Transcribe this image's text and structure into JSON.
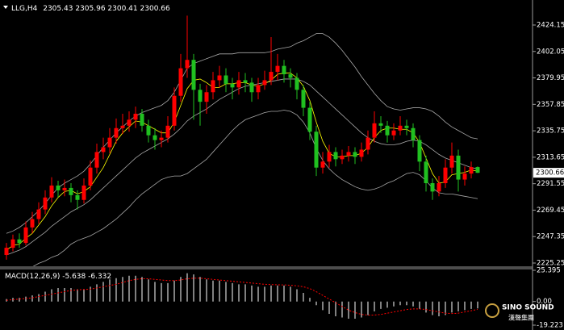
{
  "chart_data": [
    {
      "type": "candlestick",
      "title": "LLG,H4",
      "up_color": "#ff0000",
      "down_color": "#20c020",
      "candles": [
        [
          2232,
          2242,
          2228,
          2238
        ],
        [
          2238,
          2249,
          2235,
          2245
        ],
        [
          2245,
          2250,
          2238,
          2242
        ],
        [
          2242,
          2260,
          2240,
          2255
        ],
        [
          2255,
          2268,
          2250,
          2262
        ],
        [
          2262,
          2276,
          2258,
          2270
        ],
        [
          2270,
          2286,
          2266,
          2280
        ],
        [
          2280,
          2297,
          2276,
          2290
        ],
        [
          2290,
          2294,
          2280,
          2286
        ],
        [
          2286,
          2295,
          2281,
          2288
        ],
        [
          2288,
          2292,
          2276,
          2282
        ],
        [
          2282,
          2286,
          2270,
          2278
        ],
        [
          2278,
          2296,
          2275,
          2290
        ],
        [
          2290,
          2311,
          2286,
          2305
        ],
        [
          2305,
          2325,
          2300,
          2318
        ],
        [
          2318,
          2330,
          2312,
          2322
        ],
        [
          2322,
          2338,
          2317,
          2330
        ],
        [
          2330,
          2346,
          2325,
          2338
        ],
        [
          2338,
          2350,
          2333,
          2340
        ],
        [
          2340,
          2352,
          2335,
          2345
        ],
        [
          2345,
          2356,
          2338,
          2350
        ],
        [
          2350,
          2354,
          2335,
          2340
        ],
        [
          2340,
          2345,
          2326,
          2332
        ],
        [
          2332,
          2338,
          2320,
          2328
        ],
        [
          2328,
          2336,
          2322,
          2330
        ],
        [
          2330,
          2348,
          2326,
          2340
        ],
        [
          2340,
          2372,
          2336,
          2365
        ],
        [
          2365,
          2400,
          2360,
          2388
        ],
        [
          2388,
          2432,
          2380,
          2395
        ],
        [
          2395,
          2400,
          2345,
          2370
        ],
        [
          2370,
          2375,
          2340,
          2360
        ],
        [
          2360,
          2374,
          2350,
          2368
        ],
        [
          2368,
          2385,
          2362,
          2378
        ],
        [
          2378,
          2390,
          2372,
          2382
        ],
        [
          2382,
          2388,
          2368,
          2375
        ],
        [
          2375,
          2380,
          2362,
          2372
        ],
        [
          2372,
          2385,
          2366,
          2378
        ],
        [
          2378,
          2384,
          2368,
          2376
        ],
        [
          2376,
          2380,
          2360,
          2368
        ],
        [
          2368,
          2380,
          2362,
          2374
        ],
        [
          2374,
          2386,
          2370,
          2378
        ],
        [
          2378,
          2414,
          2374,
          2385
        ],
        [
          2385,
          2400,
          2378,
          2390
        ],
        [
          2390,
          2395,
          2376,
          2383
        ],
        [
          2383,
          2388,
          2372,
          2380
        ],
        [
          2380,
          2384,
          2362,
          2370
        ],
        [
          2370,
          2374,
          2348,
          2355
        ],
        [
          2355,
          2360,
          2328,
          2335
        ],
        [
          2335,
          2340,
          2298,
          2305
        ],
        [
          2305,
          2318,
          2300,
          2310
        ],
        [
          2310,
          2324,
          2305,
          2318
        ],
        [
          2318,
          2322,
          2306,
          2312
        ],
        [
          2312,
          2320,
          2308,
          2315
        ],
        [
          2315,
          2323,
          2310,
          2318
        ],
        [
          2318,
          2322,
          2308,
          2314
        ],
        [
          2314,
          2326,
          2310,
          2320
        ],
        [
          2320,
          2336,
          2316,
          2330
        ],
        [
          2330,
          2352,
          2326,
          2342
        ],
        [
          2342,
          2348,
          2334,
          2340
        ],
        [
          2340,
          2344,
          2326,
          2332
        ],
        [
          2332,
          2342,
          2328,
          2336
        ],
        [
          2336,
          2348,
          2332,
          2340
        ],
        [
          2340,
          2345,
          2332,
          2338
        ],
        [
          2338,
          2342,
          2322,
          2328
        ],
        [
          2328,
          2332,
          2302,
          2310
        ],
        [
          2310,
          2315,
          2285,
          2292
        ],
        [
          2292,
          2296,
          2278,
          2285
        ],
        [
          2285,
          2298,
          2281,
          2292
        ],
        [
          2292,
          2312,
          2288,
          2305
        ],
        [
          2305,
          2326,
          2300,
          2315
        ],
        [
          2315,
          2320,
          2285,
          2295
        ],
        [
          2295,
          2306,
          2290,
          2300
        ],
        [
          2300,
          2310,
          2296,
          2305.43
        ],
        [
          2305.43,
          2305.96,
          2300.41,
          2300.66
        ]
      ],
      "lines": [
        {
          "color": "#a8a8a8",
          "values": [
            2250,
            2252,
            2255,
            2259,
            2264,
            2269,
            2275,
            2282,
            2288,
            2292,
            2295,
            2298,
            2302,
            2308,
            2315,
            2322,
            2328,
            2334,
            2339,
            2344,
            2348,
            2351,
            2353,
            2355,
            2357,
            2361,
            2368,
            2378,
            2388,
            2392,
            2394,
            2396,
            2398,
            2400,
            2400,
            2400,
            2401,
            2401,
            2401,
            2401,
            2401,
            2402,
            2404,
            2405,
            2406,
            2409,
            2411,
            2414,
            2417,
            2417,
            2414,
            2409,
            2403,
            2396,
            2389,
            2381,
            2374,
            2367,
            2361,
            2356,
            2354,
            2353,
            2354,
            2355,
            2355,
            2354,
            2352,
            2348,
            2343,
            2339,
            2336,
            2333,
            2330,
            2329
          ]
        },
        {
          "color": "#a8a8a8",
          "values": [
            2232,
            2234,
            2236,
            2239,
            2243,
            2247,
            2251,
            2256,
            2260,
            2264,
            2268,
            2271,
            2274,
            2278,
            2283,
            2288,
            2293,
            2298,
            2303,
            2308,
            2313,
            2317,
            2320,
            2323,
            2326,
            2329,
            2333,
            2338,
            2344,
            2348,
            2351,
            2354,
            2358,
            2362,
            2365,
            2368,
            2371,
            2373,
            2374,
            2375,
            2376,
            2377,
            2378,
            2379,
            2379,
            2379,
            2377,
            2374,
            2369,
            2364,
            2359,
            2354,
            2349,
            2344,
            2339,
            2334,
            2330,
            2327,
            2325,
            2324,
            2324,
            2325,
            2327,
            2328,
            2327,
            2324,
            2320,
            2316,
            2313,
            2311,
            2309,
            2307,
            2305,
            2304
          ]
        },
        {
          "color": "#a8a8a8",
          "values": [
            2214,
            2216,
            2217,
            2219,
            2222,
            2225,
            2227,
            2230,
            2232,
            2236,
            2241,
            2244,
            2246,
            2248,
            2251,
            2254,
            2258,
            2262,
            2267,
            2272,
            2278,
            2283,
            2287,
            2291,
            2295,
            2297,
            2298,
            2298,
            2300,
            2304,
            2308,
            2312,
            2318,
            2324,
            2330,
            2336,
            2341,
            2345,
            2347,
            2349,
            2351,
            2352,
            2352,
            2353,
            2352,
            2349,
            2343,
            2334,
            2321,
            2311,
            2304,
            2299,
            2295,
            2292,
            2289,
            2287,
            2286,
            2287,
            2289,
            2292,
            2294,
            2297,
            2300,
            2301,
            2299,
            2294,
            2288,
            2284,
            2283,
            2283,
            2282,
            2281,
            2280,
            2279
          ]
        },
        {
          "color": "#ffff00",
          "values": [
            2236,
            2240,
            2241,
            2246,
            2250,
            2257,
            2264,
            2273,
            2280,
            2285,
            2286,
            2283,
            2285,
            2289,
            2297,
            2305,
            2316,
            2327,
            2334,
            2339,
            2344,
            2343,
            2340,
            2337,
            2334,
            2334,
            2343,
            2357,
            2371,
            2378,
            2379,
            2376,
            2372,
            2372,
            2375,
            2375,
            2376,
            2376,
            2374,
            2373,
            2375,
            2378,
            2383,
            2384,
            2384,
            2380,
            2373,
            2361,
            2343,
            2327,
            2317,
            2314,
            2314,
            2315,
            2315,
            2317,
            2322,
            2330,
            2336,
            2338,
            2338,
            2337,
            2337,
            2334,
            2326,
            2313,
            2300,
            2292,
            2293,
            2299,
            2300,
            2301,
            2303,
            2302
          ]
        }
      ],
      "ylim": [
        2222.55,
        2445.05
      ],
      "yticks": [
        2424.15,
        2402.05,
        2379.95,
        2357.85,
        2335.75,
        2313.65,
        2291.55,
        2269.45,
        2247.35,
        2225.25
      ],
      "grid": false
    },
    {
      "type": "macd",
      "title": "MACD(12,26,9)",
      "histogram": {
        "color": "#ffffff",
        "values": [
          2,
          3,
          3,
          4,
          5,
          6,
          8,
          10,
          11,
          11,
          11,
          10,
          10,
          12,
          14,
          16,
          18,
          19,
          20,
          21,
          21,
          20,
          18,
          16,
          15,
          15,
          17,
          20,
          23,
          22,
          20,
          18,
          17,
          17,
          16,
          15,
          14,
          14,
          13,
          12,
          12,
          13,
          13,
          13,
          12,
          10,
          7,
          3,
          -3,
          -7,
          -10,
          -12,
          -13,
          -14,
          -14,
          -13,
          -11,
          -8,
          -6,
          -5,
          -4,
          -3,
          -3,
          -4,
          -6,
          -9,
          -11,
          -12,
          -11,
          -9,
          -8,
          -7,
          -6,
          -5.638
        ]
      },
      "signal": {
        "color": "#ff0000",
        "values": [
          1,
          1.5,
          2,
          2.5,
          3,
          4,
          5,
          6,
          7,
          8,
          9,
          9.5,
          9.8,
          10,
          11,
          12,
          13,
          14,
          15.5,
          17,
          18,
          18.5,
          18.5,
          18,
          17.5,
          17,
          17,
          17.5,
          18.5,
          19,
          19,
          18.5,
          18,
          17.5,
          17,
          16.5,
          16,
          15.5,
          15,
          14.5,
          14,
          13.8,
          13.6,
          13.5,
          13.2,
          12.8,
          12,
          10.5,
          8,
          5,
          2,
          -1,
          -4,
          -7,
          -9,
          -10.5,
          -11,
          -11,
          -10.5,
          -9.5,
          -8.5,
          -7.5,
          -6.5,
          -6,
          -6,
          -6.5,
          -7.5,
          -8.5,
          -9.5,
          -9.8,
          -9.5,
          -8.5,
          -7.5,
          -6.332
        ]
      },
      "ylim": [
        -19.223,
        25.395
      ],
      "yticks": [
        25.395,
        {
          "value": 0,
          "label": "0.00"
        },
        -19.223
      ]
    }
  ],
  "logo": {
    "name": "SINO SOUND",
    "subtitle": "漢聲集團"
  }
}
